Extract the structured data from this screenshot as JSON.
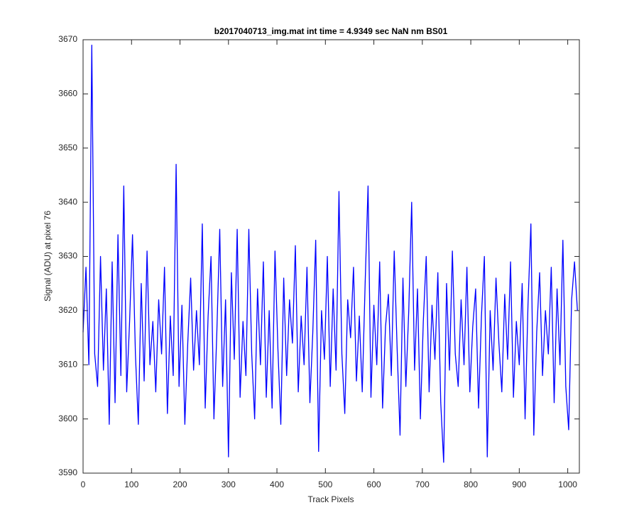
{
  "chart_data": {
    "type": "line",
    "title": "b2017040713_img.mat int time = 4.9349 sec  NaN nm BS01",
    "x_label": "Track Pixels",
    "y_label": "Signal (ADU) at pixel 76",
    "xlim": [
      0,
      1024
    ],
    "ylim": [
      3590,
      3670
    ],
    "xticks": [
      0,
      100,
      200,
      300,
      400,
      500,
      600,
      700,
      800,
      900,
      1000
    ],
    "yticks": [
      3590,
      3600,
      3610,
      3620,
      3630,
      3640,
      3650,
      3660,
      3670
    ],
    "grid": false,
    "x": [
      0,
      6,
      12,
      18,
      24,
      30,
      36,
      42,
      48,
      54,
      60,
      66,
      72,
      78,
      84,
      90,
      96,
      102,
      108,
      114,
      120,
      126,
      132,
      138,
      144,
      150,
      156,
      162,
      168,
      174,
      180,
      186,
      192,
      198,
      204,
      210,
      216,
      222,
      228,
      234,
      240,
      246,
      252,
      258,
      264,
      270,
      276,
      282,
      288,
      294,
      300,
      306,
      312,
      318,
      324,
      330,
      336,
      342,
      348,
      354,
      360,
      366,
      372,
      378,
      384,
      390,
      396,
      402,
      408,
      414,
      420,
      426,
      432,
      438,
      444,
      450,
      456,
      462,
      468,
      474,
      480,
      486,
      492,
      498,
      504,
      510,
      516,
      522,
      528,
      534,
      540,
      546,
      552,
      558,
      564,
      570,
      576,
      582,
      588,
      594,
      600,
      606,
      612,
      618,
      624,
      630,
      636,
      642,
      648,
      654,
      660,
      666,
      672,
      678,
      684,
      690,
      696,
      702,
      708,
      714,
      720,
      726,
      732,
      738,
      744,
      750,
      756,
      762,
      768,
      774,
      780,
      786,
      792,
      798,
      804,
      810,
      816,
      822,
      828,
      834,
      840,
      846,
      852,
      858,
      864,
      870,
      876,
      882,
      888,
      894,
      900,
      906,
      912,
      918,
      924,
      930,
      936,
      942,
      948,
      954,
      960,
      966,
      972,
      978,
      984,
      990,
      996,
      1002,
      1008,
      1014,
      1020
    ],
    "series": [
      {
        "color": "#0000ff",
        "values": [
          3616,
          3628,
          3610,
          3669,
          3612,
          3606,
          3630,
          3609,
          3624,
          3599,
          3629,
          3603,
          3634,
          3608,
          3643,
          3605,
          3618,
          3634,
          3612,
          3599,
          3625,
          3607,
          3631,
          3610,
          3618,
          3605,
          3622,
          3612,
          3628,
          3601,
          3619,
          3608,
          3647,
          3606,
          3621,
          3599,
          3614,
          3626,
          3609,
          3620,
          3610,
          3636,
          3602,
          3619,
          3630,
          3600,
          3616,
          3635,
          3606,
          3622,
          3593,
          3627,
          3611,
          3635,
          3604,
          3618,
          3608,
          3635,
          3612,
          3600,
          3624,
          3610,
          3629,
          3604,
          3620,
          3602,
          3631,
          3613,
          3599,
          3626,
          3608,
          3622,
          3614,
          3632,
          3605,
          3619,
          3610,
          3628,
          3603,
          3616,
          3633,
          3594,
          3620,
          3611,
          3630,
          3606,
          3624,
          3609,
          3642,
          3612,
          3601,
          3622,
          3615,
          3628,
          3607,
          3619,
          3605,
          3625,
          3643,
          3604,
          3621,
          3610,
          3629,
          3602,
          3617,
          3623,
          3608,
          3631,
          3613,
          3597,
          3626,
          3606,
          3620,
          3640,
          3609,
          3624,
          3600,
          3618,
          3630,
          3605,
          3621,
          3611,
          3627,
          3603,
          3592,
          3625,
          3609,
          3631,
          3612,
          3606,
          3622,
          3610,
          3628,
          3605,
          3617,
          3624,
          3602,
          3619,
          3630,
          3593,
          3620,
          3609,
          3626,
          3614,
          3605,
          3623,
          3611,
          3629,
          3604,
          3618,
          3610,
          3625,
          3600,
          3621,
          3636,
          3597,
          3616,
          3627,
          3608,
          3620,
          3612,
          3628,
          3603,
          3624,
          3610,
          3633,
          3606,
          3598,
          3622,
          3629,
          3620
        ]
      }
    ]
  }
}
